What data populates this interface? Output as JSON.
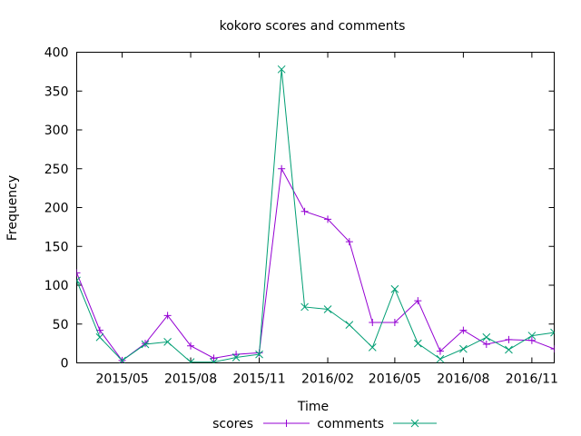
{
  "chart_data": {
    "type": "line",
    "title": "kokoro scores and comments",
    "xlabel": "Time",
    "ylabel": "Frequency",
    "ylim": [
      0,
      400
    ],
    "yticks": [
      0,
      50,
      100,
      150,
      200,
      250,
      300,
      350,
      400
    ],
    "xlim": [
      "2015-03-01",
      "2016-12-01"
    ],
    "xticks": [
      {
        "date": "2015-05-01",
        "label": "2015/05"
      },
      {
        "date": "2015-08-01",
        "label": "2015/08"
      },
      {
        "date": "2015-11-01",
        "label": "2015/11"
      },
      {
        "date": "2016-02-01",
        "label": "2016/02"
      },
      {
        "date": "2016-05-01",
        "label": "2016/05"
      },
      {
        "date": "2016-08-01",
        "label": "2016/08"
      },
      {
        "date": "2016-11-01",
        "label": "2016/11"
      }
    ],
    "grid": false,
    "legend_position": "bottom-center",
    "x": [
      "2015-03-01",
      "2015-04-01",
      "2015-05-01",
      "2015-06-01",
      "2015-07-01",
      "2015-08-01",
      "2015-09-01",
      "2015-10-01",
      "2015-11-01",
      "2015-12-01",
      "2016-01-01",
      "2016-02-01",
      "2016-03-01",
      "2016-04-01",
      "2016-05-01",
      "2016-06-01",
      "2016-07-01",
      "2016-08-01",
      "2016-09-01",
      "2016-10-01",
      "2016-11-01",
      "2016-12-01"
    ],
    "series": [
      {
        "name": "scores",
        "color": "#9400d3",
        "marker": "plus",
        "values": [
          116,
          42,
          3,
          25,
          61,
          22,
          6,
          11,
          13,
          250,
          195,
          185,
          156,
          52,
          52,
          80,
          15,
          42,
          24,
          30,
          29,
          18
        ]
      },
      {
        "name": "comments",
        "color": "#009e73",
        "marker": "cross",
        "values": [
          106,
          33,
          3,
          24,
          27,
          1,
          1,
          7,
          11,
          378,
          72,
          69,
          49,
          20,
          95,
          25,
          5,
          18,
          33,
          17,
          35,
          39
        ]
      }
    ]
  }
}
